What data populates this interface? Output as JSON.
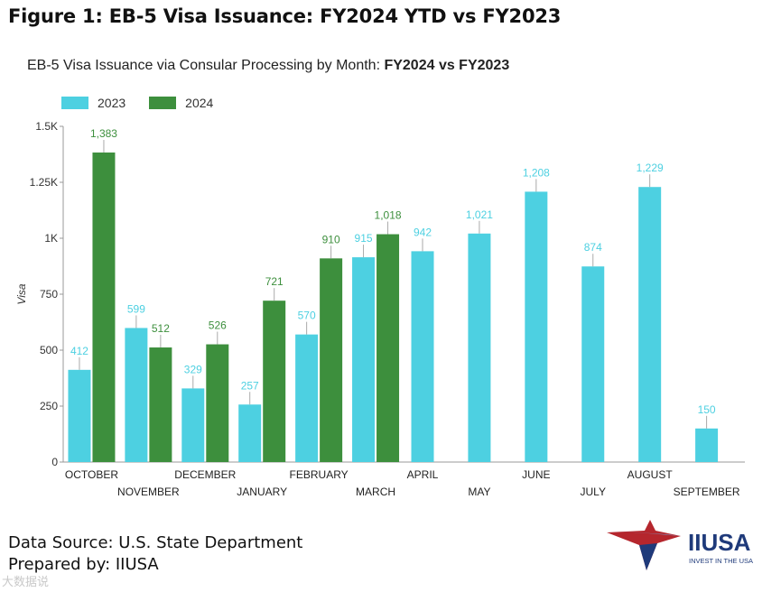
{
  "figure_title": "Figure 1: EB-5 Visa Issuance: FY2024 YTD vs FY2023",
  "chart_title_prefix": "EB-5 Visa Issuance via Consular Processing by Month: ",
  "chart_title_bold": "FY2024 vs FY2023",
  "colors": {
    "2023": "#4dd0e1",
    "2024": "#3d8f3d"
  },
  "chart_data": {
    "type": "bar",
    "title": "EB-5 Visa Issuance via Consular Processing by Month: FY2024 vs FY2023",
    "xlabel": "",
    "ylabel": "Visa",
    "ylim": [
      0,
      1500
    ],
    "yticks": [
      0,
      250,
      500,
      750,
      1000,
      1250,
      1500
    ],
    "ytick_labels": [
      "0",
      "250",
      "500",
      "750",
      "1K",
      "1.25K",
      "1.5K"
    ],
    "categories": [
      "OCTOBER",
      "NOVEMBER",
      "DECEMBER",
      "JANUARY",
      "FEBRUARY",
      "MARCH",
      "APRIL",
      "MAY",
      "JUNE",
      "JULY",
      "AUGUST",
      "SEPTEMBER"
    ],
    "series": [
      {
        "name": "2023",
        "values": [
          412,
          599,
          329,
          257,
          570,
          915,
          942,
          1021,
          1208,
          874,
          1229,
          150
        ],
        "labels": [
          "412",
          "599",
          "329",
          "257",
          "570",
          "915",
          "942",
          "1,021",
          "1,208",
          "874",
          "1,229",
          "150"
        ]
      },
      {
        "name": "2024",
        "values": [
          1383,
          512,
          526,
          721,
          910,
          1018,
          null,
          null,
          null,
          null,
          null,
          null
        ],
        "labels": [
          "1,383",
          "512",
          "526",
          "721",
          "910",
          "1,018",
          null,
          null,
          null,
          null,
          null,
          null
        ]
      }
    ],
    "legend": "top-left"
  },
  "footer": {
    "source": "Data Source: U.S. State Department",
    "prepared": "Prepared by: IIUSA"
  },
  "logo": {
    "name": "IIUSA",
    "tagline": "INVEST IN THE USA"
  },
  "watermark": "大数据说"
}
